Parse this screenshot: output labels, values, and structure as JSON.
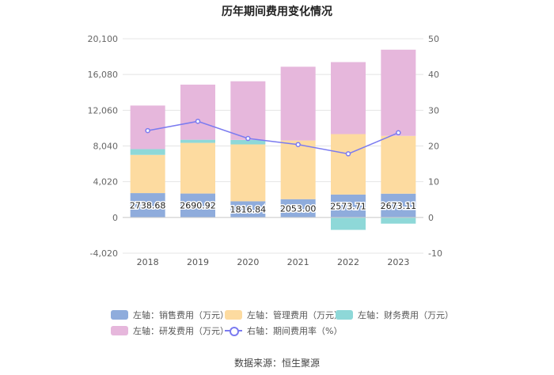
{
  "chart_data": {
    "type": "bar",
    "stacked": true,
    "title": "历年期间费用变化情况",
    "categories": [
      "2018",
      "2019",
      "2020",
      "2021",
      "2022",
      "2023"
    ],
    "left_axis": {
      "min": -4020,
      "max": 20100,
      "ticks": [
        "-4,020",
        "0",
        "4,020",
        "8,040",
        "12,060",
        "16,080",
        "20,100"
      ]
    },
    "right_axis": {
      "min": -10,
      "max": 50,
      "ticks": [
        "-10",
        "0",
        "10",
        "20",
        "30",
        "40",
        "50"
      ]
    },
    "series": [
      {
        "name": "左轴：销售费用（万元）",
        "color": "#8FACDC",
        "values": [
          2738.68,
          2690.92,
          1816.84,
          2053.0,
          2573.71,
          2673.11
        ],
        "labels": [
          "2738.68",
          "2690.92",
          "1816.84",
          "2053.00",
          "2573.71",
          "2673.11"
        ]
      },
      {
        "name": "左轴：管理费用（万元）",
        "color": "#FDDBA0",
        "values": [
          4300,
          5700,
          6400,
          6600,
          6800,
          6500
        ]
      },
      {
        "name": "左轴：财务费用（万元）",
        "color": "#8ED8D8",
        "values": [
          650,
          350,
          500,
          0,
          -1400,
          -700
        ]
      },
      {
        "name": "左轴：研发费用（万元）",
        "color": "#E6B7DC",
        "values": [
          4900,
          6200,
          6600,
          8300,
          8100,
          9700
        ]
      }
    ],
    "line_series": {
      "name": "右轴：期间费用率（%）",
      "color": "#7B7BF0",
      "axis": "right",
      "values": [
        24.3,
        26.9,
        22.1,
        20.4,
        17.8,
        23.7
      ]
    },
    "legend_position": "bottom",
    "grid": true
  },
  "source_label": "数据来源：恒生聚源"
}
